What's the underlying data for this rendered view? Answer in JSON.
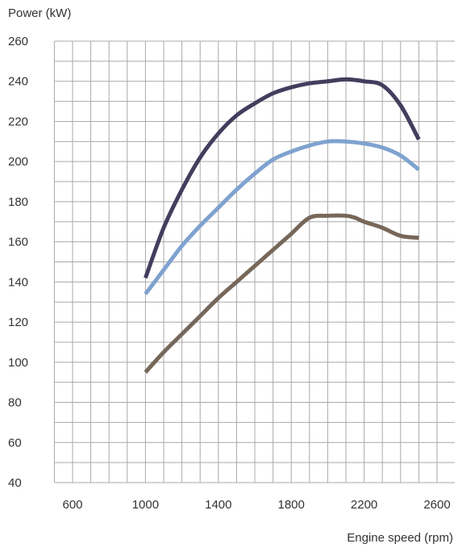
{
  "chart_data": {
    "type": "line",
    "title": "",
    "ylabel": "Power (kW)",
    "xlabel": "Engine speed (rpm)",
    "xlim": [
      600,
      2600
    ],
    "ylim": [
      40,
      260
    ],
    "x_ticks": [
      600,
      1000,
      1400,
      1800,
      2200,
      2600
    ],
    "y_ticks": [
      40,
      60,
      80,
      100,
      120,
      140,
      160,
      180,
      200,
      220,
      240,
      260
    ],
    "grid": true,
    "series": [
      {
        "color": "#443d5e",
        "x": [
          1000,
          1100,
          1200,
          1300,
          1400,
          1500,
          1600,
          1700,
          1800,
          1900,
          2000,
          2100,
          2200,
          2300,
          2400,
          2500
        ],
        "y": [
          142,
          167,
          186,
          202,
          214,
          223,
          229,
          234,
          237,
          239,
          240,
          241,
          240,
          238,
          228,
          211
        ]
      },
      {
        "color": "#7fa2cf",
        "x": [
          1000,
          1100,
          1200,
          1300,
          1400,
          1500,
          1600,
          1700,
          1800,
          1900,
          2000,
          2100,
          2200,
          2300,
          2400,
          2500
        ],
        "y": [
          134,
          146,
          158,
          168,
          177,
          186,
          194,
          201,
          205,
          208,
          210,
          210,
          209,
          207,
          203,
          196
        ]
      },
      {
        "color": "#766759",
        "x": [
          1000,
          1100,
          1200,
          1300,
          1400,
          1500,
          1600,
          1700,
          1800,
          1900,
          2000,
          2100,
          2150,
          2200,
          2300,
          2400,
          2500
        ],
        "y": [
          95,
          105,
          114,
          123,
          132,
          140,
          148,
          156,
          164,
          172,
          173,
          173,
          172,
          170,
          167,
          163,
          162
        ]
      }
    ]
  }
}
